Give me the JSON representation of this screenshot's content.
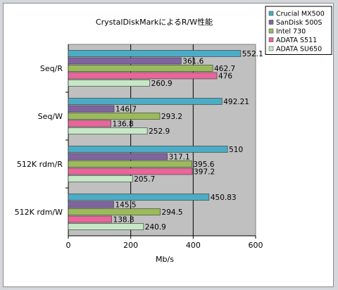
{
  "chart_data": {
    "type": "bar",
    "orientation": "horizontal",
    "title": "CrystalDiskMarkによるR/W性能",
    "xlabel": "Mb/s",
    "ylabel": "",
    "xlim": [
      0,
      600
    ],
    "xticks": [
      0,
      200,
      400,
      600
    ],
    "grid": true,
    "legend_position": "top-right",
    "categories": [
      "Seq/R",
      "Seq/W",
      "512K rdm/R",
      "512K rdm/W"
    ],
    "series": [
      {
        "name": "Crucial MX500",
        "color": "#4bacc6",
        "values": [
          552.1,
          492.21,
          510,
          450.83
        ],
        "labels": [
          "552.1",
          "492.21",
          "510",
          "450.83"
        ]
      },
      {
        "name": "SanDisk 500S",
        "color": "#8064a2",
        "values": [
          361.6,
          146.7,
          317.1,
          145.5
        ],
        "labels": [
          "361.6",
          "146.7",
          "317.1",
          "145.5"
        ]
      },
      {
        "name": "Intel 730",
        "color": "#9bbb59",
        "values": [
          462.7,
          293.2,
          395.6,
          294.5
        ],
        "labels": [
          "462.7",
          "293.2",
          "395.6",
          "294.5"
        ]
      },
      {
        "name": "ADATA S511",
        "color": "#e9669a",
        "values": [
          476,
          136.8,
          397.2,
          138.8
        ],
        "labels": [
          "476",
          "136.8",
          "397.2",
          "138.8"
        ]
      },
      {
        "name": "ADATA SU650",
        "color": "#c6e8c6",
        "values": [
          260.9,
          252.9,
          205.7,
          240.9
        ],
        "labels": [
          "260.9",
          "252.9",
          "205.7",
          "240.9"
        ]
      }
    ]
  }
}
